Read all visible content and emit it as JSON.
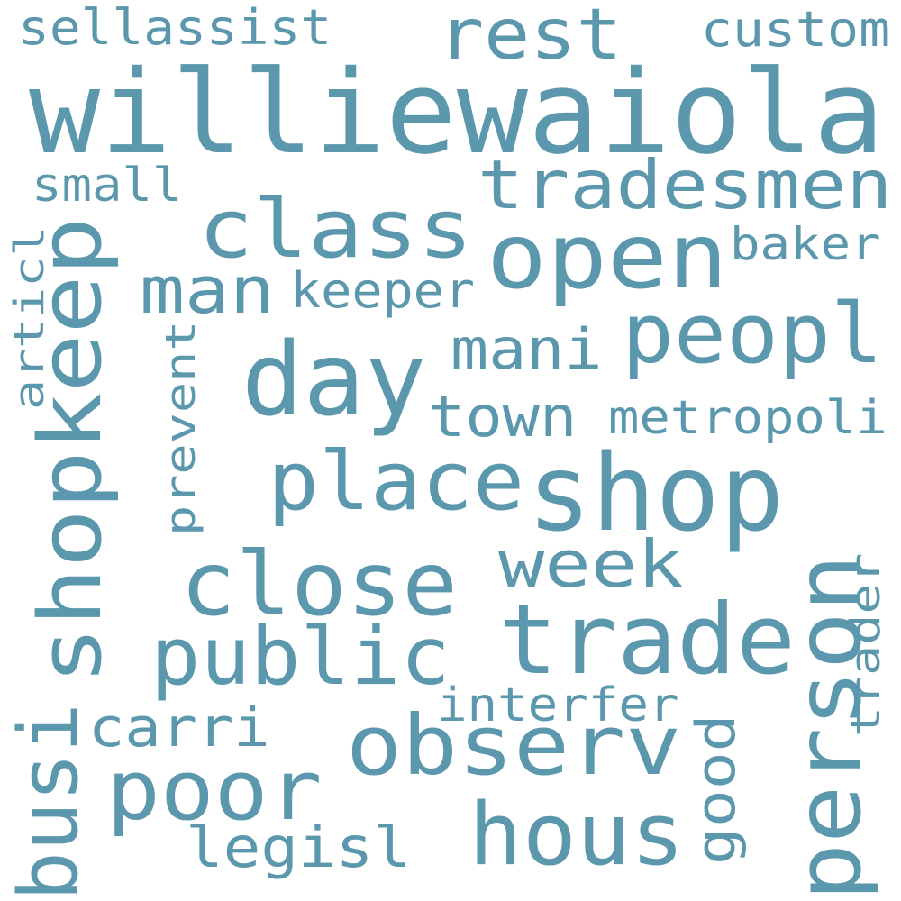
{
  "color": "#5b97ad",
  "words": [
    {
      "text": "williewaiola",
      "rotated": false
    },
    {
      "text": "shop",
      "rotated": false
    },
    {
      "text": "trade",
      "rotated": false
    },
    {
      "text": "day",
      "rotated": false
    },
    {
      "text": "open",
      "rotated": false
    },
    {
      "text": "class",
      "rotated": false
    },
    {
      "text": "peopl",
      "rotated": false
    },
    {
      "text": "close",
      "rotated": false
    },
    {
      "text": "place",
      "rotated": false
    },
    {
      "text": "public",
      "rotated": false
    },
    {
      "text": "observ",
      "rotated": false
    },
    {
      "text": "hous",
      "rotated": false
    },
    {
      "text": "poor",
      "rotated": false
    },
    {
      "text": "rest",
      "rotated": false
    },
    {
      "text": "tradesmen",
      "rotated": false
    },
    {
      "text": "man",
      "rotated": false
    },
    {
      "text": "week",
      "rotated": false
    },
    {
      "text": "town",
      "rotated": false
    },
    {
      "text": "mani",
      "rotated": false
    },
    {
      "text": "legisl",
      "rotated": false
    },
    {
      "text": "carri",
      "rotated": false
    },
    {
      "text": "interfer",
      "rotated": false
    },
    {
      "text": "metropoli",
      "rotated": false
    },
    {
      "text": "keeper",
      "rotated": false
    },
    {
      "text": "baker",
      "rotated": false
    },
    {
      "text": "custom",
      "rotated": false
    },
    {
      "text": "sellassist",
      "rotated": false
    },
    {
      "text": "small",
      "rotated": false
    },
    {
      "text": "shopkeep",
      "rotated": true
    },
    {
      "text": "person",
      "rotated": true
    },
    {
      "text": "busi",
      "rotated": true
    },
    {
      "text": "articl",
      "rotated": true
    },
    {
      "text": "prevent",
      "rotated": true
    },
    {
      "text": "good",
      "rotated": true
    },
    {
      "text": "trader",
      "rotated": true
    }
  ]
}
